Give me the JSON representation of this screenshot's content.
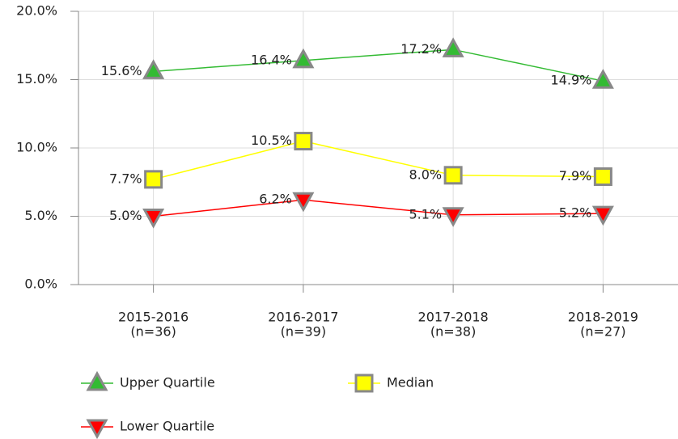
{
  "chart_data": {
    "type": "line",
    "categories": [
      [
        "2015-2016",
        "(n=36)"
      ],
      [
        "2016-2017",
        "(n=39)"
      ],
      [
        "2017-2018",
        "(n=38)"
      ],
      [
        "2018-2019",
        "(n=27)"
      ]
    ],
    "series": [
      {
        "name": "Upper Quartile",
        "color": "#33bb33",
        "marker": "triangle-up",
        "values": [
          15.6,
          16.4,
          17.2,
          14.9
        ],
        "value_labels": [
          "15.6%",
          "16.4%",
          "17.2%",
          "14.9%"
        ]
      },
      {
        "name": "Median",
        "color": "#ffff00",
        "marker": "square",
        "values": [
          7.7,
          10.5,
          8.0,
          7.9
        ],
        "value_labels": [
          "7.7%",
          "10.5%",
          "8.0%",
          "7.9%"
        ]
      },
      {
        "name": "Lower Quartile",
        "color": "#ff0000",
        "marker": "triangle-down",
        "values": [
          5.0,
          6.2,
          5.1,
          5.2
        ],
        "value_labels": [
          "5.0%",
          "6.2%",
          "5.1%",
          "5.2%"
        ]
      }
    ],
    "ylim": [
      0,
      20
    ],
    "yticks": [
      {
        "value": 0,
        "label": "0.0%"
      },
      {
        "value": 5,
        "label": "5.0%"
      },
      {
        "value": 10,
        "label": "10.0%"
      },
      {
        "value": 15,
        "label": "15.0%"
      },
      {
        "value": 20,
        "label": "20.0%"
      }
    ],
    "grid": true
  }
}
